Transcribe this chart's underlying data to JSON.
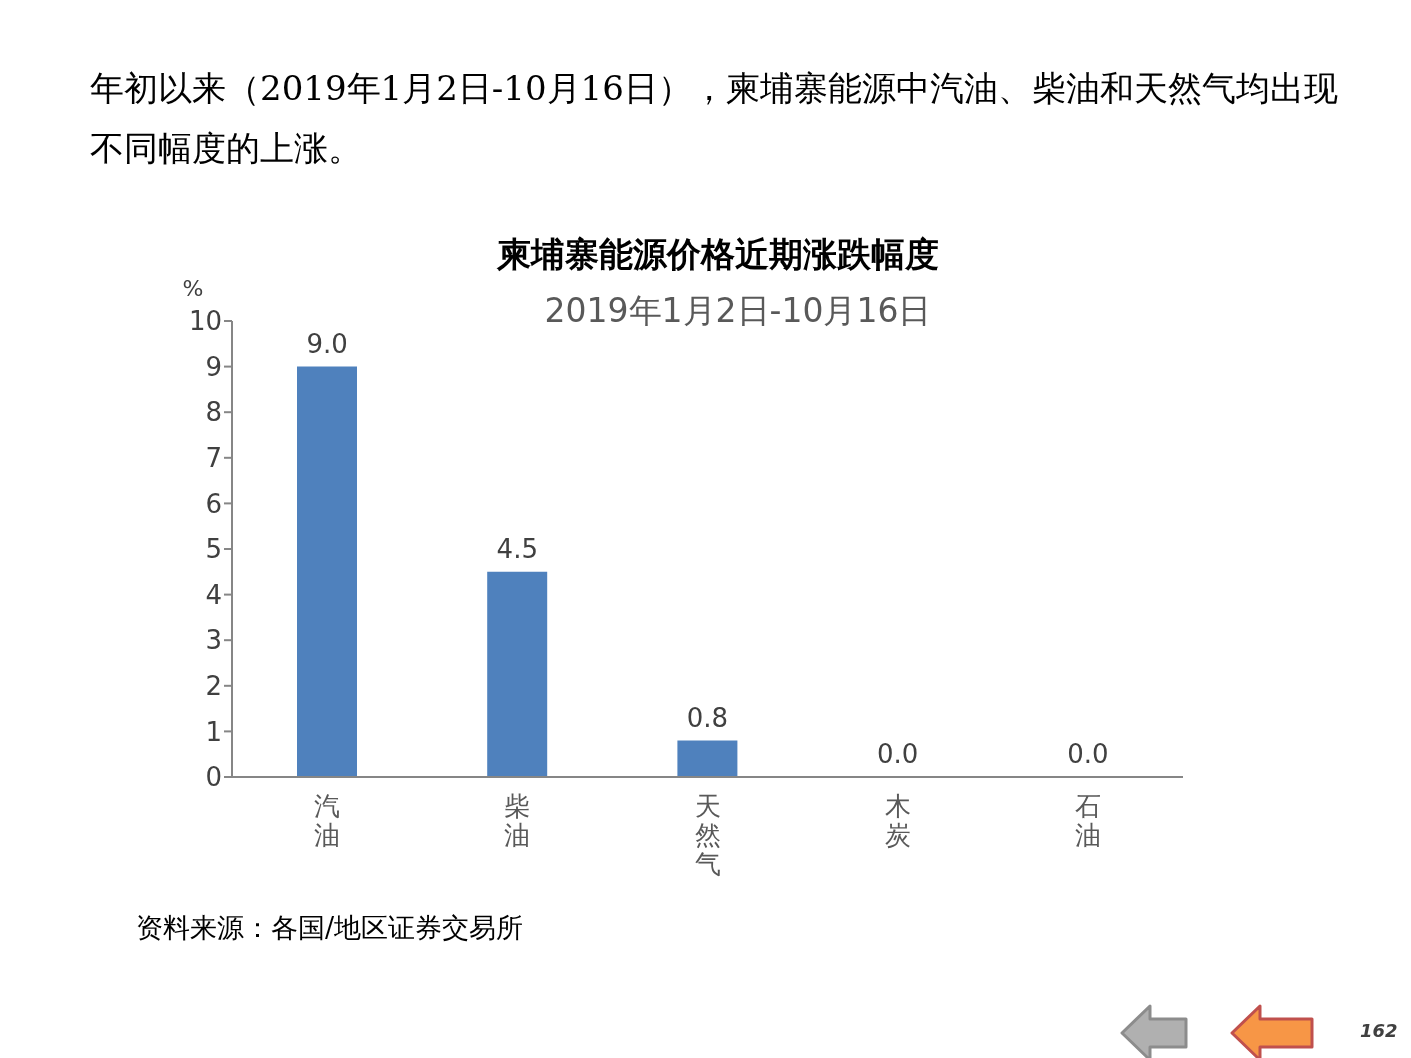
{
  "chart_data": {
    "type": "bar",
    "title": "柬埔寨能源价格近期涨跌幅度",
    "subtitle": "2019年1月2日-10月16日",
    "ylabel": "%",
    "categories": [
      "汽油",
      "柴油",
      "天然气",
      "木炭",
      "石油"
    ],
    "values": [
      9.0,
      4.5,
      0.8,
      0.0,
      0.0
    ],
    "value_labels": [
      "9.0",
      "4.5",
      "0.8",
      "0.0",
      "0.0"
    ],
    "color": "#4f81bd",
    "ylim": [
      0,
      10
    ],
    "yticks": [
      0,
      1,
      2,
      3,
      4,
      5,
      6,
      7,
      8,
      9,
      10
    ],
    "grid": false,
    "legend": false,
    "annotations": [
      "年初以来（2019年1月2日-10月16日），柬埔寨能源中汽油、柴油和天然气均出现不同幅度的上涨。",
      "资料来源：各国/地区证券交易所",
      "162"
    ]
  }
}
